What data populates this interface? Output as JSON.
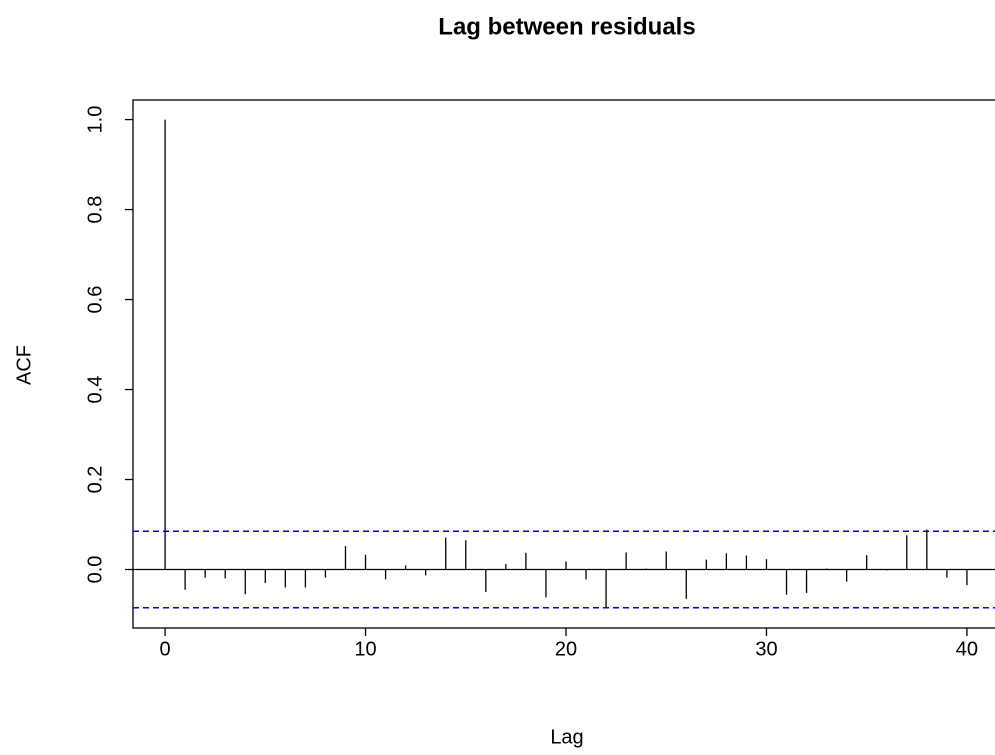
{
  "chart_data": {
    "type": "acf",
    "title": "Lag between residuals",
    "x_label": "Lag",
    "y_label": "ACF",
    "x": [
      0,
      1,
      2,
      3,
      4,
      5,
      6,
      7,
      8,
      9,
      10,
      11,
      12,
      13,
      14,
      15,
      16,
      17,
      18,
      19,
      20,
      21,
      22,
      23,
      24,
      25,
      26,
      27,
      28,
      29,
      30,
      31,
      32,
      33,
      34,
      35,
      36,
      37,
      38,
      39,
      40
    ],
    "values": [
      1.0,
      -0.045,
      -0.018,
      -0.02,
      -0.055,
      -0.03,
      -0.04,
      -0.04,
      -0.018,
      0.052,
      0.033,
      -0.022,
      0.009,
      -0.013,
      0.071,
      0.065,
      -0.05,
      0.012,
      0.037,
      -0.062,
      0.018,
      -0.022,
      -0.085,
      0.038,
      0.002,
      0.04,
      -0.065,
      0.022,
      0.036,
      0.031,
      0.023,
      -0.056,
      -0.052,
      0.002,
      -0.027,
      0.032,
      -0.002,
      0.076,
      0.089,
      -0.018,
      -0.035
    ],
    "color": "#000000",
    "ci_upper": 0.085,
    "ci_lower": -0.085,
    "ci_color": "#0000ff",
    "xlim": [
      -1.6,
      41.6
    ],
    "ylim": [
      -0.13,
      1.0435
    ],
    "xticks": [
      0,
      10,
      20,
      30,
      40
    ],
    "yticks": [
      {
        "value": 0,
        "label": "0.0"
      },
      {
        "value": 0.2,
        "label": "0.2"
      },
      {
        "value": 0.4,
        "label": "0.4"
      },
      {
        "value": 0.6,
        "label": "0.6"
      },
      {
        "value": 0.8,
        "label": "0.8"
      },
      {
        "value": 1,
        "label": "1.0"
      }
    ]
  }
}
